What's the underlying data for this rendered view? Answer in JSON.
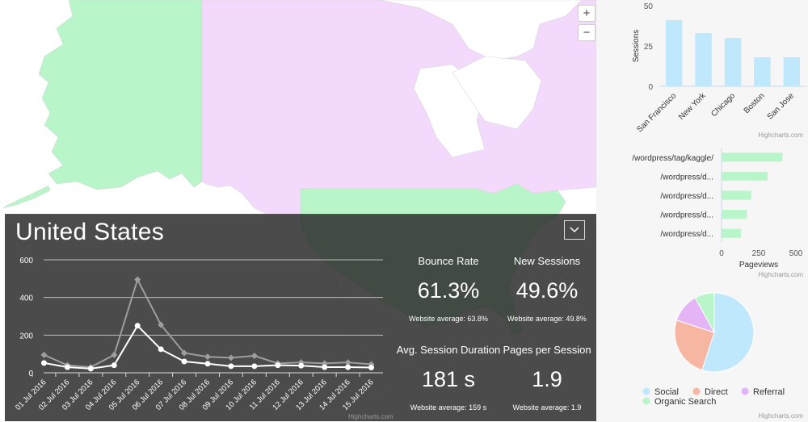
{
  "map": {
    "zoom_in": "+",
    "zoom_out": "−",
    "colors": {
      "ocean": "#ffffff",
      "us": "#b8f5c8",
      "canada": "#f3d9fb",
      "land": "#ffffff"
    }
  },
  "panel": {
    "country": "United States",
    "dropdown_icon": "chevron-down-icon",
    "credit": "Highcharts.com",
    "stats": {
      "bounce": {
        "label": "Bounce Rate",
        "value": "61.3%",
        "avg": "Website average: 63.8%"
      },
      "new_sessions": {
        "label": "New Sessions",
        "value": "49.6%",
        "avg": "Website average: 49.8%"
      },
      "duration": {
        "label": "Avg. Session Duration",
        "value": "181 s",
        "avg": "Website average: 159 s"
      },
      "pages": {
        "label": "Pages per Session",
        "value": "1.9",
        "avg": "Website average: 1.9"
      }
    }
  },
  "chart_data": [
    {
      "type": "line",
      "x": [
        "01 Jul 2016",
        "02 Jul 2016",
        "03 Jul 2016",
        "04 Jul 2016",
        "05 Jul 2016",
        "06 Jul 2016",
        "07 Jul 2016",
        "08 Jul 2016",
        "09 Jul 2016",
        "10 Jul 2016",
        "11 Jul 2016",
        "12 Jul 2016",
        "13 Jul 2016",
        "14 Jul 2016",
        "15 Jul 2016"
      ],
      "yticks": [
        0,
        200,
        400,
        600
      ],
      "ylim": [
        0,
        600
      ],
      "grid": true,
      "series": [
        {
          "values": [
            95,
            40,
            30,
            95,
            495,
            255,
            105,
            85,
            80,
            90,
            50,
            55,
            50,
            55,
            45
          ],
          "color": "#9e9e9e"
        },
        {
          "values": [
            52,
            30,
            22,
            40,
            250,
            125,
            60,
            48,
            35,
            35,
            40,
            38,
            30,
            30,
            28
          ],
          "color": "#ffffff"
        }
      ]
    },
    {
      "type": "bar",
      "categories": [
        "San Francisco",
        "New York",
        "Chicago",
        "Boston",
        "San Jose"
      ],
      "values": [
        41,
        33,
        30,
        18,
        18
      ],
      "ylabel": "Sessions",
      "yticks": [
        0,
        25,
        50
      ],
      "ylim": [
        0,
        50
      ],
      "color": "#bfe8fd",
      "credit": "Highcharts.com"
    },
    {
      "type": "bar",
      "orientation": "horizontal",
      "categories": [
        "/wordpress/tag/kaggle/",
        "/wordpress/d...",
        "/wordpress/d...",
        "/wordpress/d...",
        "/wordpress/d..."
      ],
      "values": [
        410,
        310,
        200,
        170,
        130
      ],
      "xlabel": "Pageviews",
      "xticks": [
        0,
        250,
        500
      ],
      "xlim": [
        0,
        500
      ],
      "color": "#b8f5c8",
      "credit": "Highcharts.com"
    },
    {
      "type": "pie",
      "labels": [
        "Social",
        "Direct",
        "Referral",
        "Organic Search"
      ],
      "values": [
        55,
        25,
        12,
        8
      ],
      "colors": [
        "#bfe8fd",
        "#f7b6a2",
        "#e4b4f7",
        "#b8f5c8"
      ],
      "credit": "Highcharts.com"
    }
  ]
}
